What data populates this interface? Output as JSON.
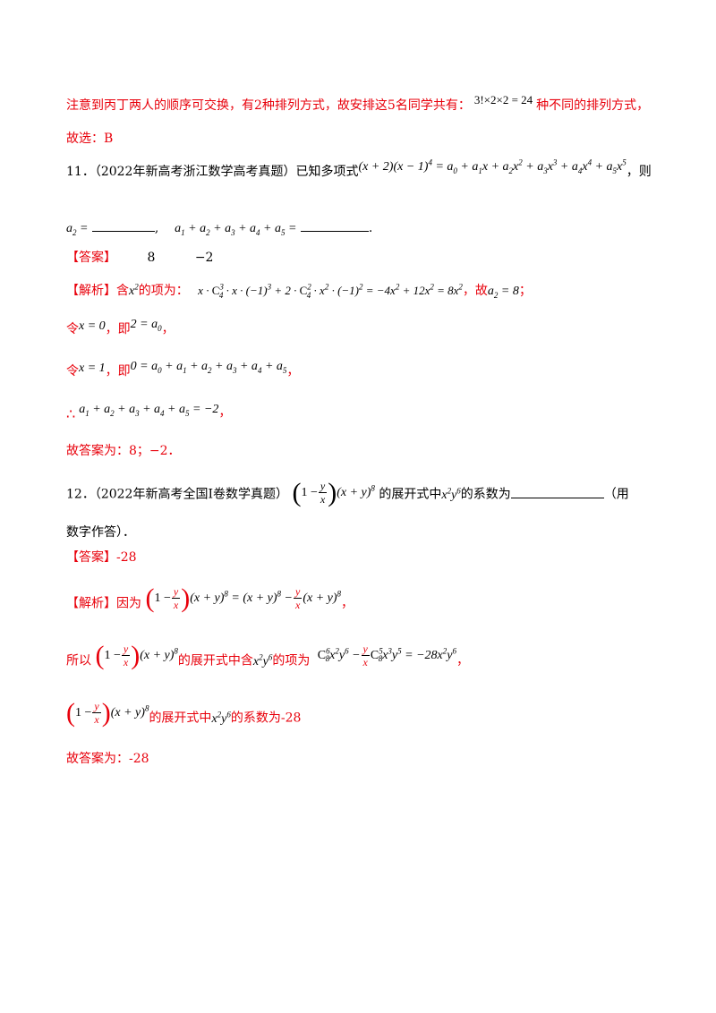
{
  "line1": {
    "text": "注意到丙丁两人的顺序可交换，有2种排列方式，故安排这5名同学共有：",
    "math": "3!×2×2 = 24",
    "tail": "种不同的排列方式，"
  },
  "line2": {
    "text": "故选：B"
  },
  "q11": {
    "num": "11．",
    "source": "（2022年新高考浙江数学高考真题）",
    "intro": "已知多项式",
    "tail": "，则"
  },
  "q11_blanks": {
    "a2": "a₂ =",
    "sum": "a₁ + a₂ + a₃ + a₄ + a₅ ="
  },
  "ans11": {
    "label": "【答案】",
    "v1": "8",
    "v2": "−2"
  },
  "jx11": {
    "label": "【解析】",
    "t1": "含",
    "t2": "的项为：",
    "t3": "，故",
    "t4": "；"
  },
  "ling1": {
    "t1": "令",
    "t2": "，即",
    "t3": "，"
  },
  "ling2": {
    "t1": "令",
    "t2": "，即",
    "t3": "，"
  },
  "therefore": {
    "sym": "∴",
    "t": "，"
  },
  "final11": {
    "t": "故答案为：8；−2．"
  },
  "q12": {
    "num": "12．",
    "source": "（2022年新高考全国I卷数学真题）",
    "t1": "的展开式中",
    "t2": "的系数为",
    "tail": "（用",
    "cont": "数字作答）．"
  },
  "ans12": {
    "label": "【答案】",
    "v": "-28"
  },
  "jx12": {
    "label": "【解析】",
    "t1": "因为",
    "t2": "，"
  },
  "suoyi": {
    "t1": "所以",
    "t2": "的展开式中含",
    "t3": "的项为",
    "t4": "，"
  },
  "coef": {
    "t1": "的展开式中",
    "t2": "的系数为-28"
  },
  "final12": {
    "t": "故答案为：-28"
  }
}
